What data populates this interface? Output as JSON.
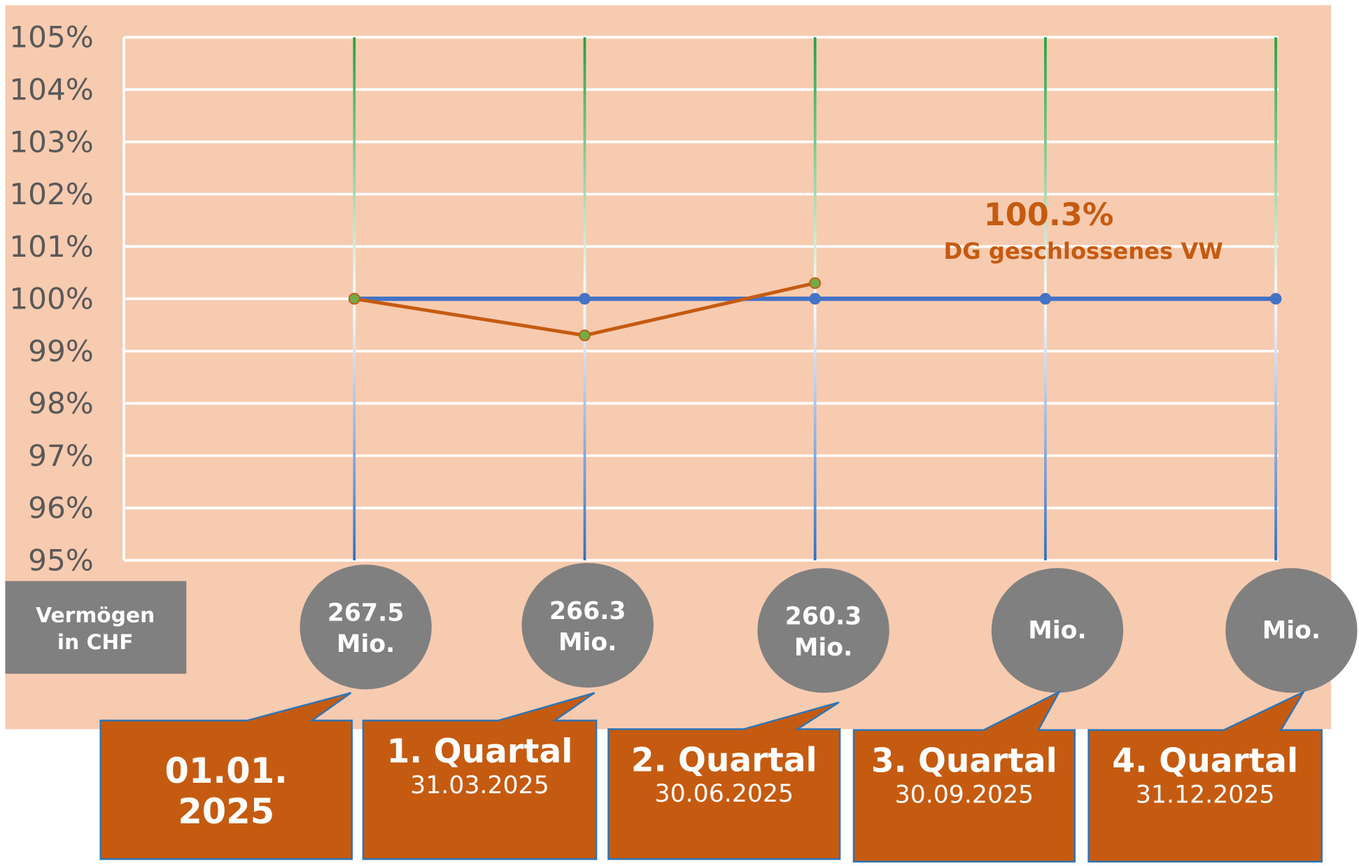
{
  "chart_data": {
    "type": "line",
    "ylim": [
      95,
      105
    ],
    "yticks": [
      {
        "value": 95,
        "label": "95%"
      },
      {
        "value": 96,
        "label": "96%"
      },
      {
        "value": 97,
        "label": "97%"
      },
      {
        "value": 98,
        "label": "98%"
      },
      {
        "value": 99,
        "label": "99%"
      },
      {
        "value": 100,
        "label": "100%"
      },
      {
        "value": 101,
        "label": "101%"
      },
      {
        "value": 102,
        "label": "102%"
      },
      {
        "value": 103,
        "label": "103%"
      },
      {
        "value": 104,
        "label": "104%"
      },
      {
        "value": 105,
        "label": "105%"
      }
    ],
    "grid": true,
    "series": [
      {
        "color": "#4472c4",
        "values": [
          100,
          100,
          100,
          100,
          100
        ]
      },
      {
        "color": "#c55a11",
        "marker_color": "#70ad47",
        "values": [
          100,
          99.3,
          100.3,
          null,
          null
        ]
      }
    ],
    "annotation": {
      "value": 100.3,
      "label": "100.3%",
      "caption": "DG geschlossenes VW"
    }
  },
  "row_label": [
    "Vermögen",
    "in CHF"
  ],
  "assets_unit": "Mio.",
  "assets": [
    267.5,
    266.3,
    260.3,
    null,
    null
  ],
  "periods": [
    {
      "lines": [
        "01.01.",
        "2025"
      ]
    },
    {
      "title": "1. Quartal",
      "date": "31.03.2025"
    },
    {
      "title": "2. Quartal",
      "date": "30.06.2025"
    },
    {
      "title": "3. Quartal",
      "date": "30.09.2025"
    },
    {
      "title": "4. Quartal",
      "date": "31.12.2025"
    }
  ]
}
